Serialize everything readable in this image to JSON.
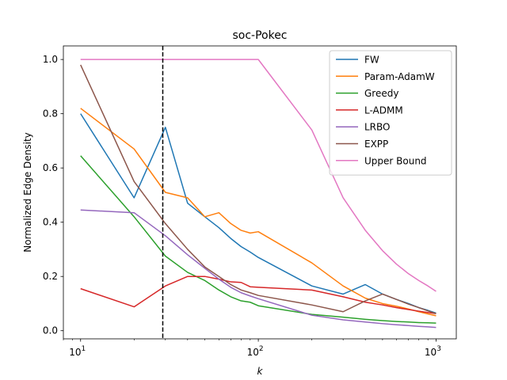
{
  "chart_data": {
    "type": "line",
    "title": "soc-Pokec",
    "xlabel": "k",
    "ylabel": "Normalized Edge Density",
    "xscale": "log",
    "xlim": [
      8,
      1300
    ],
    "ylim": [
      -0.03,
      1.05
    ],
    "xticks": [
      {
        "value": 10,
        "base": "10",
        "exp": "1"
      },
      {
        "value": 100,
        "base": "10",
        "exp": "2"
      },
      {
        "value": 1000,
        "base": "10",
        "exp": "3"
      }
    ],
    "yticks": [
      {
        "value": 0.0,
        "label": "0.0"
      },
      {
        "value": 0.2,
        "label": "0.2"
      },
      {
        "value": 0.4,
        "label": "0.4"
      },
      {
        "value": 0.6,
        "label": "0.6"
      },
      {
        "value": 0.8,
        "label": "0.8"
      },
      {
        "value": 1.0,
        "label": "1.0"
      }
    ],
    "vline": {
      "x": 29,
      "style": "dashed",
      "color": "#000000"
    },
    "legend_position": "top-right",
    "series": [
      {
        "name": "FW",
        "color": "#1f77b4",
        "x": [
          10,
          20,
          30,
          40,
          50,
          60,
          70,
          80,
          90,
          100,
          200,
          300,
          400,
          500,
          600,
          700,
          800,
          900,
          1000
        ],
        "y": [
          0.8,
          0.49,
          0.75,
          0.47,
          0.42,
          0.38,
          0.34,
          0.31,
          0.29,
          0.27,
          0.165,
          0.135,
          0.17,
          0.135,
          0.115,
          0.1,
          0.085,
          0.075,
          0.065
        ]
      },
      {
        "name": "Param-AdamW",
        "color": "#ff7f0e",
        "x": [
          10,
          20,
          30,
          40,
          50,
          60,
          70,
          80,
          90,
          100,
          200,
          300,
          400,
          500,
          600,
          700,
          800,
          900,
          1000
        ],
        "y": [
          0.82,
          0.67,
          0.51,
          0.49,
          0.42,
          0.435,
          0.395,
          0.37,
          0.36,
          0.365,
          0.25,
          0.165,
          0.12,
          0.1,
          0.09,
          0.08,
          0.07,
          0.062,
          0.055
        ]
      },
      {
        "name": "Greedy",
        "color": "#2ca02c",
        "x": [
          10,
          20,
          30,
          40,
          50,
          60,
          70,
          80,
          90,
          100,
          200,
          300,
          400,
          500,
          600,
          700,
          800,
          900,
          1000
        ],
        "y": [
          0.645,
          0.42,
          0.275,
          0.215,
          0.185,
          0.15,
          0.125,
          0.11,
          0.105,
          0.092,
          0.06,
          0.05,
          0.042,
          0.037,
          0.034,
          0.032,
          0.03,
          0.029,
          0.028
        ]
      },
      {
        "name": "L-ADMM",
        "color": "#d62728",
        "x": [
          10,
          20,
          30,
          40,
          50,
          60,
          70,
          80,
          90,
          100,
          200,
          300,
          400,
          500,
          600,
          700,
          800,
          900,
          1000
        ],
        "y": [
          0.155,
          0.088,
          0.165,
          0.2,
          0.2,
          0.19,
          0.18,
          0.178,
          0.162,
          0.16,
          0.15,
          0.125,
          0.105,
          0.095,
          0.085,
          0.078,
          0.072,
          0.067,
          0.063
        ]
      },
      {
        "name": "LRBO",
        "color": "#9467bd",
        "x": [
          10,
          20,
          30,
          40,
          50,
          60,
          70,
          80,
          90,
          100,
          200,
          300,
          400,
          500,
          600,
          700,
          800,
          900,
          1000
        ],
        "y": [
          0.445,
          0.435,
          0.35,
          0.28,
          0.23,
          0.19,
          0.16,
          0.14,
          0.128,
          0.118,
          0.057,
          0.04,
          0.032,
          0.026,
          0.022,
          0.019,
          0.016,
          0.014,
          0.012
        ]
      },
      {
        "name": "EXPP",
        "color": "#8c564b",
        "x": [
          10,
          20,
          30,
          40,
          50,
          60,
          70,
          80,
          90,
          100,
          200,
          300,
          400,
          500,
          600,
          700,
          800,
          900,
          1000
        ],
        "y": [
          0.98,
          0.55,
          0.395,
          0.3,
          0.235,
          0.2,
          0.17,
          0.15,
          0.14,
          0.13,
          0.095,
          0.07,
          0.11,
          0.135,
          0.115,
          0.098,
          0.085,
          0.073,
          0.063
        ]
      },
      {
        "name": "Upper Bound",
        "color": "#e377c2",
        "x": [
          10,
          20,
          30,
          40,
          50,
          60,
          70,
          80,
          90,
          100,
          200,
          300,
          400,
          500,
          600,
          700,
          800,
          900,
          1000
        ],
        "y": [
          1.0,
          1.0,
          1.0,
          1.0,
          1.0,
          1.0,
          1.0,
          1.0,
          1.0,
          1.0,
          0.74,
          0.49,
          0.37,
          0.295,
          0.245,
          0.21,
          0.185,
          0.165,
          0.145
        ]
      }
    ]
  }
}
